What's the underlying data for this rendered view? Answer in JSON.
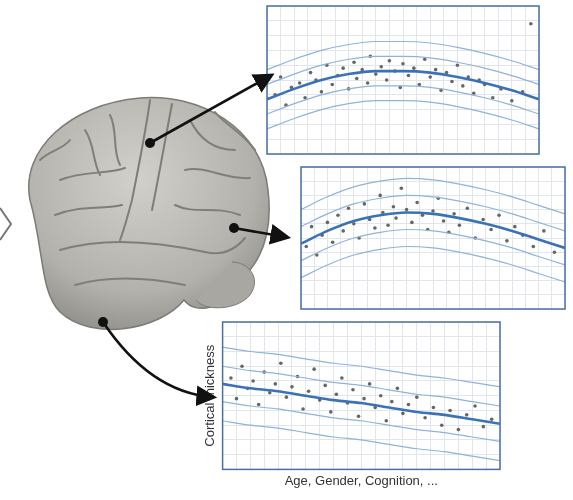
{
  "chart_data": [
    {
      "type": "scatter",
      "x": [
        0,
        10,
        20,
        30,
        40,
        50,
        60,
        70,
        80,
        90,
        100
      ],
      "series": [
        {
          "color": "#8fb3da",
          "line_style": "solid",
          "values": [
            17,
            24,
            30,
            34,
            36,
            36,
            35,
            32,
            28,
            23,
            17
          ]
        },
        {
          "color": "#8fb3da",
          "line_style": "solid",
          "values": [
            27,
            34,
            40,
            44,
            46,
            46,
            45,
            42,
            38,
            33,
            27
          ]
        },
        {
          "color": "#3a72b5",
          "line_style": "thick",
          "values": [
            37,
            44,
            50,
            54,
            56,
            56,
            55,
            52,
            48,
            43,
            37
          ]
        },
        {
          "color": "#8fb3da",
          "line_style": "solid",
          "values": [
            47,
            54,
            60,
            64,
            66,
            66,
            65,
            62,
            58,
            53,
            47
          ]
        },
        {
          "color": "#8fb3da",
          "line_style": "solid",
          "values": [
            57,
            64,
            70,
            74,
            76,
            76,
            75,
            72,
            68,
            63,
            57
          ]
        }
      ],
      "points": {
        "color": "#666666",
        "marker": "circle",
        "x": [
          3,
          5,
          7,
          9,
          12,
          14,
          16,
          18,
          20,
          22,
          24,
          26,
          28,
          30,
          32,
          33,
          35,
          37,
          38,
          40,
          42,
          44,
          45,
          47,
          49,
          50,
          52,
          54,
          56,
          58,
          60,
          62,
          64,
          66,
          68,
          70,
          72,
          74,
          76,
          78,
          80,
          83,
          86,
          90,
          94,
          97
        ],
        "y": [
          40,
          52,
          33,
          45,
          48,
          38,
          55,
          50,
          42,
          60,
          47,
          53,
          58,
          44,
          62,
          51,
          57,
          48,
          66,
          54,
          59,
          50,
          63,
          56,
          45,
          61,
          53,
          58,
          47,
          64,
          52,
          57,
          43,
          55,
          49,
          60,
          46,
          52,
          41,
          50,
          47,
          38,
          44,
          36,
          42,
          88
        ]
      },
      "xlim": [
        0,
        100
      ],
      "ylim": [
        0,
        100
      ],
      "xticks": [
        0,
        5,
        10,
        15,
        20,
        25,
        30,
        35,
        40,
        45,
        50,
        55,
        60,
        65,
        70,
        75,
        80,
        85,
        90,
        95,
        100
      ],
      "yticks": [
        0,
        10,
        20,
        30,
        40,
        50,
        60,
        70,
        80,
        90,
        100
      ],
      "grid": true,
      "tick_labels": false
    },
    {
      "type": "scatter",
      "x": [
        0,
        10,
        20,
        30,
        40,
        50,
        60,
        70,
        80,
        90,
        100
      ],
      "series": [
        {
          "color": "#8fb3da",
          "line_style": "solid",
          "values": [
            22,
            31,
            38,
            42,
            44,
            43,
            40,
            36,
            31,
            25,
            19
          ]
        },
        {
          "color": "#8fb3da",
          "line_style": "solid",
          "values": [
            34,
            43,
            50,
            54,
            56,
            55,
            52,
            48,
            43,
            37,
            31
          ]
        },
        {
          "color": "#3a72b5",
          "line_style": "thick",
          "values": [
            46,
            55,
            62,
            66,
            68,
            67,
            64,
            60,
            55,
            49,
            43
          ]
        },
        {
          "color": "#8fb3da",
          "line_style": "solid",
          "values": [
            58,
            67,
            74,
            78,
            80,
            79,
            76,
            72,
            67,
            61,
            55
          ]
        },
        {
          "color": "#8fb3da",
          "line_style": "solid",
          "values": [
            70,
            79,
            86,
            90,
            92,
            91,
            88,
            84,
            79,
            73,
            67
          ]
        }
      ],
      "points": {
        "color": "#666666",
        "marker": "circle",
        "x": [
          2,
          4,
          6,
          8,
          10,
          12,
          14,
          16,
          18,
          20,
          22,
          24,
          26,
          28,
          30,
          31,
          33,
          35,
          36,
          38,
          40,
          42,
          44,
          46,
          48,
          50,
          52,
          54,
          56,
          58,
          60,
          63,
          66,
          69,
          72,
          75,
          78,
          81,
          84,
          88,
          92,
          96
        ],
        "y": [
          44,
          58,
          38,
          52,
          61,
          47,
          66,
          55,
          71,
          60,
          50,
          74,
          63,
          57,
          80,
          68,
          59,
          72,
          64,
          85,
          70,
          61,
          75,
          66,
          56,
          69,
          78,
          62,
          54,
          67,
          59,
          71,
          50,
          63,
          56,
          66,
          48,
          58,
          52,
          44,
          55,
          40
        ]
      },
      "xlim": [
        0,
        100
      ],
      "ylim": [
        0,
        100
      ],
      "xticks": [
        0,
        5,
        10,
        15,
        20,
        25,
        30,
        35,
        40,
        45,
        50,
        55,
        60,
        65,
        70,
        75,
        80,
        85,
        90,
        95,
        100
      ],
      "yticks": [
        0,
        10,
        20,
        30,
        40,
        50,
        60,
        70,
        80,
        90,
        100
      ],
      "grid": true,
      "tick_labels": false
    },
    {
      "type": "scatter",
      "y_label": "Cortical thickness",
      "x_label": "Age, Gender, Cognition, ...",
      "x": [
        0,
        10,
        20,
        30,
        40,
        50,
        60,
        70,
        80,
        90,
        100
      ],
      "series": [
        {
          "color": "#8fb3da",
          "line_style": "solid",
          "values": [
            33,
            30,
            28,
            25,
            22,
            20,
            17,
            14,
            12,
            9,
            6
          ]
        },
        {
          "color": "#8fb3da",
          "line_style": "solid",
          "values": [
            46,
            43,
            41,
            38,
            35,
            33,
            30,
            27,
            25,
            22,
            19
          ]
        },
        {
          "color": "#3a72b5",
          "line_style": "thick",
          "values": [
            58,
            55,
            53,
            50,
            47,
            45,
            42,
            39,
            37,
            34,
            31
          ]
        },
        {
          "color": "#8fb3da",
          "line_style": "solid",
          "values": [
            70,
            67,
            65,
            62,
            59,
            57,
            54,
            51,
            49,
            46,
            43
          ]
        },
        {
          "color": "#8fb3da",
          "line_style": "solid",
          "values": [
            83,
            80,
            78,
            75,
            72,
            70,
            67,
            64,
            62,
            59,
            56
          ]
        }
      ],
      "points": {
        "color": "#666666",
        "marker": "circle",
        "x": [
          3,
          5,
          7,
          9,
          11,
          13,
          15,
          17,
          19,
          21,
          23,
          25,
          27,
          29,
          31,
          33,
          35,
          37,
          39,
          41,
          43,
          45,
          47,
          49,
          51,
          53,
          55,
          57,
          59,
          61,
          63,
          65,
          67,
          70,
          73,
          76,
          79,
          82,
          85,
          88,
          91,
          94,
          97
        ],
        "y": [
          62,
          48,
          70,
          55,
          60,
          44,
          66,
          52,
          58,
          72,
          49,
          56,
          63,
          41,
          53,
          68,
          47,
          57,
          39,
          51,
          62,
          45,
          54,
          36,
          48,
          58,
          42,
          50,
          33,
          46,
          55,
          38,
          44,
          49,
          35,
          42,
          30,
          40,
          27,
          37,
          43,
          29,
          34
        ]
      },
      "xlim": [
        0,
        100
      ],
      "ylim": [
        0,
        100
      ],
      "xticks": [
        0,
        5,
        10,
        15,
        20,
        25,
        30,
        35,
        40,
        45,
        50,
        55,
        60,
        65,
        70,
        75,
        80,
        85,
        90,
        95,
        100
      ],
      "yticks": [
        0,
        10,
        20,
        30,
        40,
        50,
        60,
        70,
        80,
        90,
        100
      ],
      "grid": true,
      "tick_labels": false
    }
  ]
}
